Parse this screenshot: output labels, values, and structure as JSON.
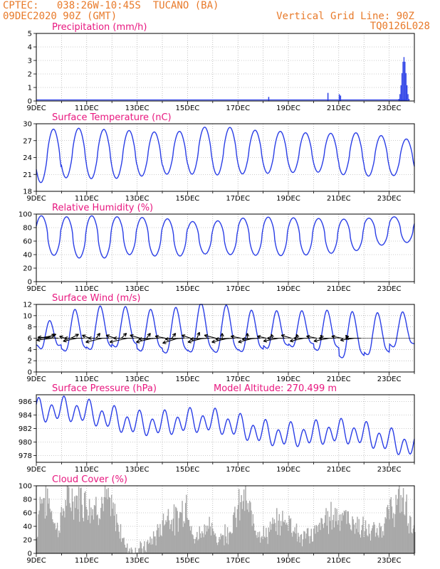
{
  "header": {
    "line1": "CPTEC:   038:26W-10:45S  TUCANO (BA)",
    "line2": "09DEC2020 90Z (GMT)",
    "grid_note": "Vertical Grid Line: 90Z",
    "run_id": "TQ0126L028"
  },
  "colors": {
    "header": "#e87a2a",
    "title": "#e8177f",
    "line": "#2a3ee6",
    "cloud": "#a9a9a9"
  },
  "chart_data": [
    {
      "id": "precip",
      "type": "bar",
      "title": "Precipitation (mm/h)",
      "ylim": [
        0,
        5
      ],
      "yticks": [
        0,
        1,
        2,
        3,
        4,
        5
      ],
      "xticks": [
        "9DEC",
        "11DEC",
        "13DEC",
        "15DEC",
        "17DEC",
        "19DEC",
        "21DEC",
        "23DEC"
      ],
      "xlim_days": [
        0,
        15
      ],
      "spikes": [
        [
          9.2,
          0.3
        ],
        [
          11.55,
          0.6
        ],
        [
          12.0,
          0.5
        ],
        [
          12.05,
          0.4
        ]
      ],
      "late_event": {
        "start": 14.25,
        "end": 14.8,
        "peak_day": 14.57,
        "peak": 3.3
      }
    },
    {
      "id": "temp",
      "type": "line",
      "title": "Surface Temperature (nC)",
      "ylim": [
        18,
        30
      ],
      "yticks": [
        18,
        21,
        24,
        27,
        30
      ],
      "xticks": [
        "9DEC",
        "11DEC",
        "13DEC",
        "15DEC",
        "17DEC",
        "19DEC",
        "21DEC",
        "23DEC"
      ],
      "daily_max": [
        28.9,
        29.2,
        29.2,
        28.8,
        28.8,
        28.3,
        29.0,
        29.8,
        28.9,
        28.8,
        28.5,
        28.3,
        28.3,
        28.5,
        27.3
      ],
      "daily_min": [
        18.8,
        20.3,
        20.5,
        20.0,
        20.6,
        20.8,
        21.3,
        20.8,
        21.0,
        21.2,
        21.2,
        21.5,
        21.3,
        20.6,
        20.8
      ]
    },
    {
      "id": "rh",
      "type": "line",
      "title": "Relative Humidity (%)",
      "ylim": [
        0,
        100
      ],
      "yticks": [
        0,
        20,
        40,
        60,
        80,
        100
      ],
      "xticks": [
        "9DEC",
        "11DEC",
        "13DEC",
        "15DEC",
        "17DEC",
        "19DEC",
        "21DEC",
        "23DEC"
      ],
      "daily_max": [
        100,
        95,
        97,
        98,
        94,
        96,
        90,
        88,
        92,
        96,
        95,
        94,
        93,
        92,
        96
      ],
      "daily_min": [
        38,
        40,
        30,
        40,
        40,
        36,
        40,
        42,
        38,
        40,
        37,
        42,
        42,
        50,
        58
      ]
    },
    {
      "id": "wind",
      "type": "line",
      "title": "Surface Wind (m/s)",
      "ylim": [
        0,
        12
      ],
      "yticks": [
        0,
        2,
        4,
        6,
        8,
        10,
        12
      ],
      "xticks": [
        "9DEC",
        "11DEC",
        "13DEC",
        "15DEC",
        "17DEC",
        "19DEC",
        "21DEC",
        "23DEC"
      ],
      "daily_max": [
        6.5,
        10.0,
        10.5,
        11.2,
        10.3,
        10.2,
        11.0,
        11.8,
        10.2,
        10.0,
        10.0,
        10.0,
        10.2,
        9.5,
        9.8
      ],
      "daily_min": [
        4.2,
        3.5,
        2.8,
        4.0,
        3.8,
        2.5,
        3.0,
        2.8,
        2.9,
        3.2,
        4.2,
        3.8,
        2.8,
        1.0,
        4.0
      ],
      "vector_days": [
        0.125,
        0.375,
        0.625,
        0.875,
        1.125,
        1.375,
        1.625,
        1.875,
        2.125,
        2.375,
        2.625,
        2.875,
        3.125,
        3.375,
        3.625,
        3.875,
        4.125,
        4.375,
        4.625,
        4.875,
        5.125,
        5.375,
        5.625,
        5.875,
        6.125,
        6.375,
        6.625,
        6.875,
        7.125,
        7.375,
        7.625,
        7.875,
        8.125,
        8.375,
        8.625,
        8.875,
        9.125,
        9.375,
        9.625,
        9.875,
        10.125,
        10.375,
        10.625,
        10.875,
        11.125,
        11.375,
        11.625,
        11.875,
        12.125,
        12.375,
        12.625,
        12.875
      ],
      "vector_u": [
        -1.2,
        -0.8,
        1.2,
        1.6,
        0.4,
        -0.6,
        1.1,
        1.5,
        0.6,
        -0.3,
        1.3,
        1.6,
        0.7,
        -0.4,
        1.4,
        1.6,
        0.8,
        -0.3,
        1.3,
        1.6,
        0.8,
        -0.3,
        1.2,
        1.5,
        0.7,
        -0.2,
        1.2,
        1.5,
        0.9,
        0.0,
        1.3,
        1.5,
        0.8,
        0.0,
        1.2,
        1.4,
        0.7,
        0.1,
        1.2,
        1.4,
        0.8,
        0.1,
        1.1,
        1.3,
        0.8,
        0.2,
        1.2,
        1.3,
        0.8,
        0.2,
        1.1,
        1.2
      ],
      "vector_v": [
        -0.3,
        -0.4,
        0.2,
        -0.1,
        -0.2,
        -0.4,
        0.3,
        0.0,
        -0.3,
        -0.5,
        0.4,
        0.0,
        -0.3,
        -0.5,
        0.4,
        0.0,
        -0.3,
        -0.5,
        0.4,
        0.1,
        -0.2,
        -0.5,
        0.5,
        0.1,
        -0.3,
        -0.6,
        0.4,
        0.1,
        -0.3,
        -0.5,
        0.4,
        0.1,
        -0.2,
        -0.5,
        0.4,
        0.1,
        -0.2,
        -0.4,
        0.3,
        0.0,
        -0.3,
        -0.4,
        0.3,
        0.0,
        -0.2,
        -0.3,
        0.3,
        0.0,
        -0.2,
        -0.3,
        0.2,
        0.0
      ]
    },
    {
      "id": "pressure",
      "type": "line",
      "title": "Surface Pressure (hPa)",
      "title_extra": "Model Altitude: 270.499 m",
      "ylim": [
        977,
        987
      ],
      "yticks": [
        978,
        980,
        982,
        984,
        986
      ],
      "xticks": [
        "9DEC",
        "11DEC",
        "13DEC",
        "15DEC",
        "17DEC",
        "19DEC",
        "21DEC",
        "23DEC"
      ],
      "base_start": 984.5,
      "base_end": 980.0,
      "semidiurnal_amp": 1.9
    },
    {
      "id": "cloud",
      "type": "area",
      "title": "Cloud Cover (%)",
      "ylim": [
        0,
        100
      ],
      "yticks": [
        0,
        20,
        40,
        60,
        80,
        100
      ],
      "xticks": [
        "9DEC",
        "11DEC",
        "13DEC",
        "15DEC",
        "17DEC",
        "19DEC",
        "21DEC",
        "23DEC"
      ],
      "profile": [
        [
          0.0,
          25
        ],
        [
          0.1,
          95
        ],
        [
          0.5,
          90
        ],
        [
          0.8,
          40
        ],
        [
          1.2,
          95
        ],
        [
          1.9,
          95
        ],
        [
          2.2,
          80
        ],
        [
          2.5,
          85
        ],
        [
          2.8,
          90
        ],
        [
          3.2,
          55
        ],
        [
          3.5,
          15
        ],
        [
          3.8,
          5
        ],
        [
          4.3,
          10
        ],
        [
          4.8,
          35
        ],
        [
          5.2,
          70
        ],
        [
          5.5,
          55
        ],
        [
          6.0,
          95
        ],
        [
          6.2,
          20
        ],
        [
          6.7,
          50
        ],
        [
          7.2,
          25
        ],
        [
          7.7,
          45
        ],
        [
          8.2,
          95
        ],
        [
          8.6,
          55
        ],
        [
          9.0,
          30
        ],
        [
          9.5,
          50
        ],
        [
          10.0,
          60
        ],
        [
          10.5,
          25
        ],
        [
          11.0,
          35
        ],
        [
          11.5,
          60
        ],
        [
          12.0,
          70
        ],
        [
          12.5,
          55
        ],
        [
          13.0,
          40
        ],
        [
          13.5,
          35
        ],
        [
          14.0,
          70
        ],
        [
          14.5,
          95
        ],
        [
          15.0,
          35
        ]
      ]
    }
  ]
}
